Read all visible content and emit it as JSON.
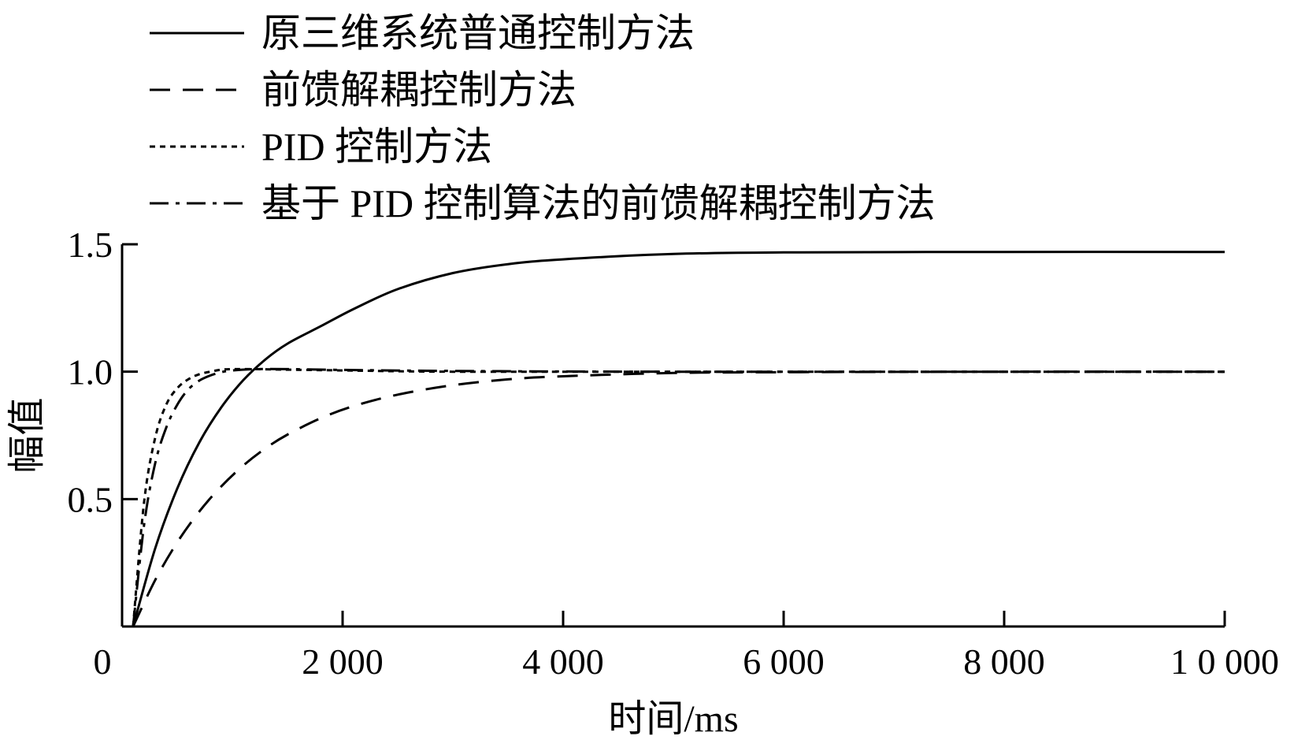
{
  "chart_data": {
    "type": "line",
    "xlabel": "时间/ms",
    "ylabel": "幅值",
    "xlim": [
      0,
      10000
    ],
    "ylim": [
      0,
      1.5
    ],
    "x_ticks": [
      {
        "value": 0,
        "label": "0"
      },
      {
        "value": 2000,
        "label": "2 000"
      },
      {
        "value": 4000,
        "label": "4 000"
      },
      {
        "value": 6000,
        "label": "6 000"
      },
      {
        "value": 8000,
        "label": "8 000"
      },
      {
        "value": 10000,
        "label": "1 0 000"
      }
    ],
    "y_ticks": [
      {
        "value": 0.5,
        "label": "0.5"
      },
      {
        "value": 1.0,
        "label": "1.0"
      },
      {
        "value": 1.5,
        "label": "1.5"
      }
    ],
    "grid": false,
    "legend_position": "top-left, above plot",
    "series": [
      {
        "name": "原三维系统普通控制方法",
        "style": "solid",
        "x": [
          100,
          300,
          500,
          700,
          900,
          1100,
          1300,
          1500,
          1800,
          2100,
          2500,
          3000,
          3500,
          4000,
          5000,
          6000,
          8000,
          10000
        ],
        "y": [
          0.0,
          0.306,
          0.541,
          0.722,
          0.86,
          0.967,
          1.048,
          1.11,
          1.178,
          1.246,
          1.324,
          1.387,
          1.422,
          1.441,
          1.462,
          1.468,
          1.47,
          1.47
        ]
      },
      {
        "name": "前馈解耦控制方法",
        "style": "dashed",
        "x": [
          100,
          300,
          500,
          700,
          900,
          1100,
          1300,
          1500,
          1800,
          2100,
          2500,
          3000,
          3500,
          4000,
          5000,
          6000,
          8000,
          10000
        ],
        "y": [
          0.0,
          0.182,
          0.33,
          0.451,
          0.55,
          0.632,
          0.699,
          0.753,
          0.817,
          0.865,
          0.91,
          0.947,
          0.97,
          0.982,
          0.995,
          0.998,
          1.0,
          1.0
        ]
      },
      {
        "name": "PID 控制方法",
        "style": "dotted",
        "x": [
          100,
          200,
          300,
          400,
          500,
          600,
          700,
          800,
          900,
          1000,
          1200,
          1500,
          2000,
          3000,
          5000,
          10000
        ],
        "y": [
          0.0,
          0.49,
          0.74,
          0.87,
          0.935,
          0.97,
          0.99,
          1.0,
          1.008,
          1.01,
          1.01,
          1.008,
          1.005,
          1.0,
          1.0,
          1.0
        ]
      },
      {
        "name": "基于 PID 控制算法的前馈解耦控制方法",
        "style": "dash-dot",
        "x": [
          100,
          200,
          300,
          400,
          500,
          600,
          700,
          800,
          900,
          1000,
          1200,
          1500,
          2000,
          3000,
          5000,
          10000
        ],
        "y": [
          0.0,
          0.4,
          0.64,
          0.78,
          0.87,
          0.93,
          0.965,
          0.985,
          0.998,
          1.005,
          1.01,
          1.01,
          1.007,
          1.003,
          1.0,
          1.0
        ]
      }
    ]
  }
}
